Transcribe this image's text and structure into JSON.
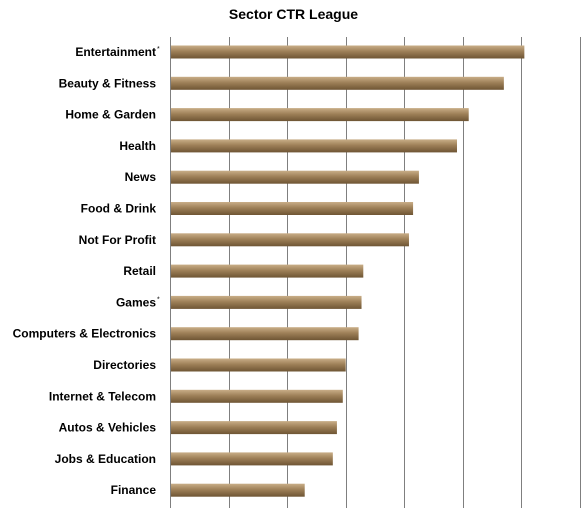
{
  "chart_data": {
    "type": "bar",
    "orientation": "horizontal",
    "title": "Sector CTR League",
    "xlabel": "",
    "ylabel": "",
    "categories": [
      "Entertainment",
      "Beauty & Fitness",
      "Home & Garden",
      "Health",
      "News",
      "Food & Drink",
      "Not For Profit",
      "Retail",
      "Games",
      "Computers & Electronics",
      "Directories",
      "Internet & Telecom",
      "Autos & Vehicles",
      "Jobs & Education",
      "Finance"
    ],
    "category_marks": [
      "*",
      "",
      "",
      "",
      "",
      "",
      "",
      "",
      "*",
      "",
      "",
      "",
      "",
      "",
      ""
    ],
    "values": [
      6.05,
      5.7,
      5.1,
      4.9,
      4.25,
      4.15,
      4.08,
      3.3,
      3.27,
      3.22,
      3.0,
      2.95,
      2.85,
      2.78,
      2.3
    ],
    "xlim": [
      0,
      7
    ],
    "grid": true,
    "legend": "none",
    "colors": {
      "bar_fill": "#9E8058",
      "bar_highlight": "#C9AE88",
      "bar_shadow": "#6E5534",
      "grid": "#7F7F7F",
      "axis": "#7F7F7F"
    }
  }
}
